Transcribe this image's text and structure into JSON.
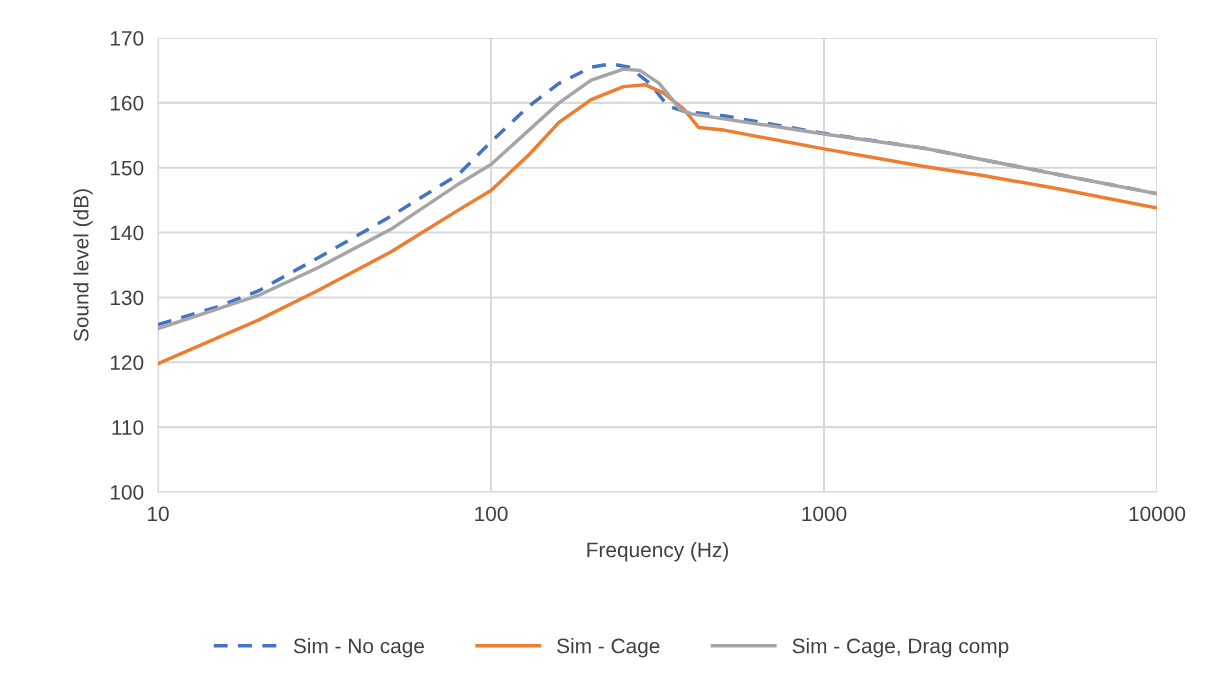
{
  "chart_data": {
    "type": "line",
    "xlabel": "Frequency (Hz)",
    "ylabel": "Sound level (dB)",
    "log": "x",
    "xlim": [
      10,
      10000
    ],
    "xticks": [
      10,
      100,
      1000,
      10000
    ],
    "ylim": [
      100,
      170
    ],
    "yticks": [
      100,
      110,
      120,
      130,
      140,
      150,
      160,
      170
    ],
    "grid": true,
    "legend": "bottom",
    "marker": "none",
    "series": [
      {
        "name": "Sim - No cage",
        "color": "#4472c4",
        "line_style": "dashed",
        "x": [
          10,
          15,
          20,
          30,
          50,
          80,
          100,
          130,
          160,
          200,
          230,
          260,
          300,
          340,
          380,
          500,
          1000,
          2000,
          5000,
          10000
        ],
        "values": [
          125.8,
          128.5,
          131,
          136,
          142.5,
          149,
          154,
          159.5,
          163,
          165.5,
          166,
          165.5,
          163,
          159.5,
          158.7,
          158,
          155.3,
          153,
          149,
          146
        ]
      },
      {
        "name": "Sim - Cage",
        "color": "#ed7d31",
        "line_style": "solid",
        "x": [
          10,
          20,
          30,
          50,
          80,
          100,
          130,
          160,
          200,
          250,
          290,
          330,
          380,
          420,
          500,
          1000,
          2000,
          3000,
          5000,
          10000
        ],
        "values": [
          119.8,
          126.5,
          131,
          137,
          143.5,
          146.5,
          152,
          157,
          160.5,
          162.5,
          162.8,
          161.5,
          159,
          156.2,
          155.8,
          152.9,
          150.2,
          148.8,
          146.8,
          143.8
        ]
      },
      {
        "name": "Sim - Cage, Drag comp",
        "color": "#a5a5a5",
        "line_style": "solid",
        "x": [
          10,
          20,
          30,
          50,
          80,
          100,
          130,
          160,
          200,
          250,
          280,
          320,
          370,
          400,
          1000,
          2000,
          5000,
          10000
        ],
        "values": [
          125.2,
          130.3,
          134.5,
          140.5,
          147.5,
          150.5,
          155.8,
          160,
          163.5,
          165.2,
          165,
          163,
          159,
          158.3,
          155.2,
          153,
          149,
          146
        ]
      }
    ]
  }
}
